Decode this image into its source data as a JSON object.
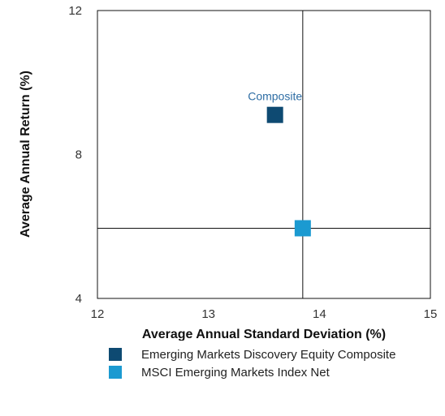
{
  "chart_data": {
    "type": "scatter",
    "xlabel": "Average Annual Standard Deviation (%)",
    "ylabel": "Average Annual Return (%)",
    "xlim": [
      12,
      15
    ],
    "ylim": [
      4,
      12
    ],
    "xticks": [
      12,
      13,
      14,
      15
    ],
    "yticks": [
      4,
      8,
      12
    ],
    "grid": false,
    "legend_position": "bottom",
    "series": [
      {
        "name": "Emerging Markets Discovery Equity Composite",
        "color": "#0e4a72",
        "marker": "square",
        "points": [
          {
            "x": 13.6,
            "y": 9.1,
            "label": "Composite"
          }
        ]
      },
      {
        "name": "MSCI Emerging Markets Index Net",
        "color": "#1b9ad1",
        "marker": "square",
        "points": [
          {
            "x": 13.85,
            "y": 5.95
          }
        ]
      }
    ],
    "reference_lines": {
      "x": 13.85,
      "y": 5.95
    }
  },
  "colors": {
    "frame": "#111111",
    "point_label": "#2e6da4"
  }
}
